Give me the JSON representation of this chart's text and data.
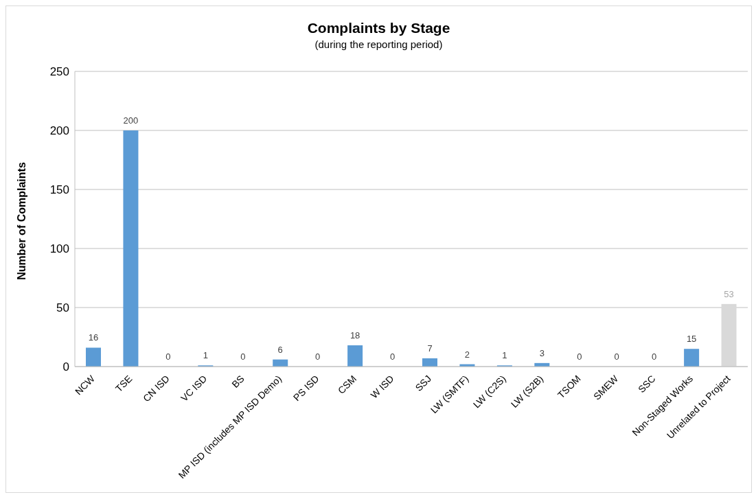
{
  "chart_data": {
    "type": "bar",
    "title": "Complaints by Stage",
    "subtitle": "(during the reporting period)",
    "ylabel": "Number of Complaints",
    "categories": [
      "NCW",
      "TSE",
      "CN ISD",
      "VC ISD",
      "BS",
      "MP ISD (includes MP ISD Demo)",
      "PS ISD",
      "CSM",
      "W ISD",
      "SSJ",
      "LW (SMTF)",
      "LW (C2S)",
      "LW (S2B)",
      "TSOM",
      "SMEW",
      "SSC",
      "Non-Staged Works",
      "Unrelated to Project"
    ],
    "values": [
      16,
      200,
      0,
      1,
      0,
      6,
      0,
      18,
      0,
      7,
      2,
      1,
      3,
      0,
      0,
      0,
      15,
      53
    ],
    "colors": [
      "#5b9bd5",
      "#5b9bd5",
      "#5b9bd5",
      "#5b9bd5",
      "#5b9bd5",
      "#5b9bd5",
      "#5b9bd5",
      "#5b9bd5",
      "#5b9bd5",
      "#5b9bd5",
      "#5b9bd5",
      "#5b9bd5",
      "#5b9bd5",
      "#5b9bd5",
      "#5b9bd5",
      "#5b9bd5",
      "#5b9bd5",
      "#d9d9d9"
    ],
    "ylim": [
      0,
      250
    ],
    "yticks": [
      0,
      50,
      100,
      150,
      200,
      250
    ],
    "grid": "y",
    "data_labels": true,
    "legend": false
  }
}
